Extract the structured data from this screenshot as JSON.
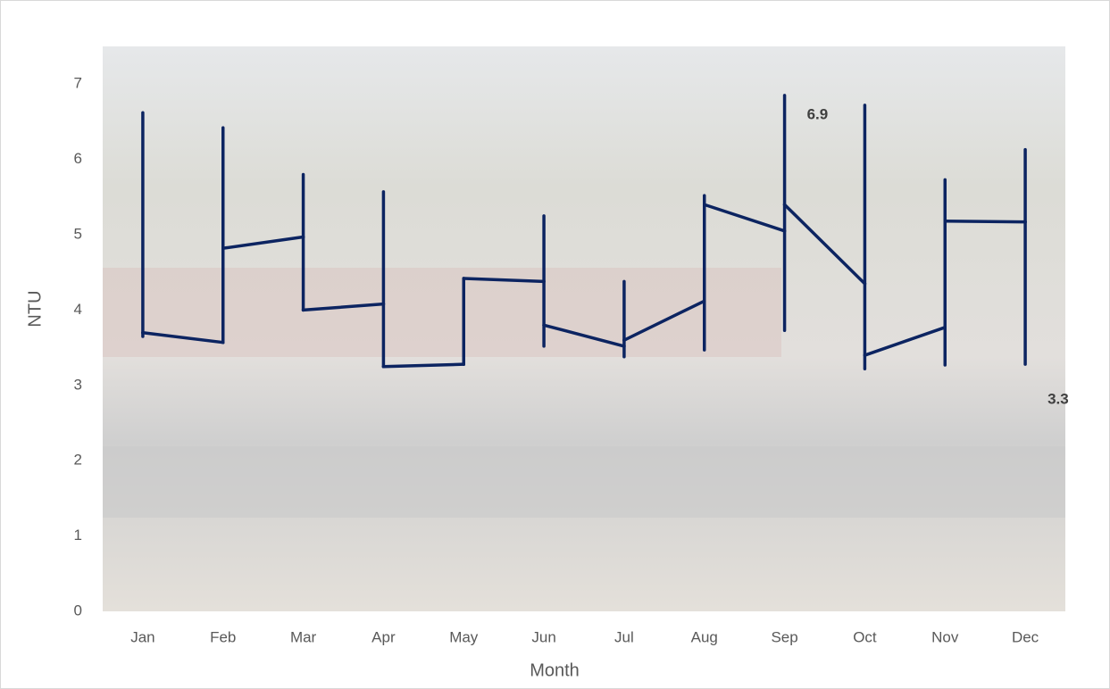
{
  "chart_data": {
    "type": "line",
    "x_label": "Month",
    "y_label": "NTU",
    "categories": [
      "Jan",
      "Feb",
      "Mar",
      "Apr",
      "May",
      "Jun",
      "Jul",
      "Aug",
      "Sep",
      "Oct",
      "Nov",
      "Dec"
    ],
    "first": [
      3.7,
      3.57,
      4.97,
      4.08,
      3.28,
      4.38,
      3.52,
      4.12,
      5.05,
      4.35,
      3.77,
      5.17
    ],
    "high": [
      6.62,
      6.42,
      5.8,
      5.57,
      4.42,
      5.25,
      4.38,
      5.52,
      6.85,
      6.72,
      5.73,
      6.13
    ],
    "low": [
      3.65,
      3.57,
      4.0,
      3.25,
      3.28,
      3.52,
      3.38,
      3.47,
      3.73,
      3.22,
      3.27,
      3.28
    ],
    "last": [
      3.7,
      4.82,
      4.0,
      3.25,
      4.42,
      3.8,
      3.6,
      5.4,
      5.4,
      3.4,
      5.18,
      5.17
    ],
    "color": "#0c2461",
    "annotations": [
      {
        "category": "Sep",
        "label": "6.9",
        "value": 6.85
      },
      {
        "category": "Dec",
        "label": "3.3",
        "value": 3.28
      }
    ],
    "ylim": [
      0,
      7.5
    ],
    "yticks": [
      0,
      1,
      2,
      3,
      4,
      5,
      6,
      7
    ],
    "grid": false
  }
}
